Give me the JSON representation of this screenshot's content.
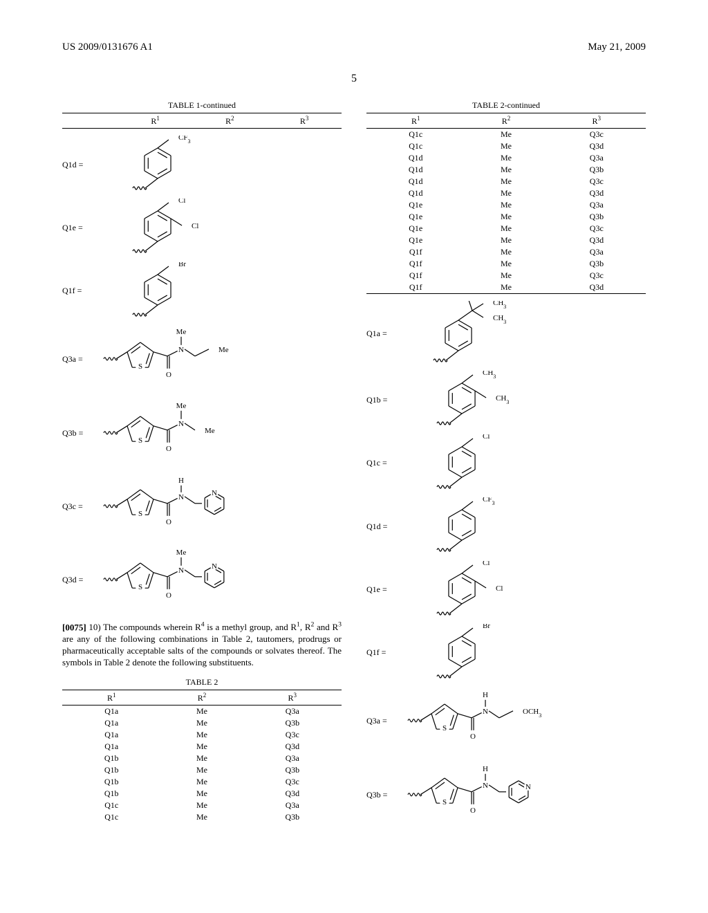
{
  "header": {
    "left": "US 2009/0131676 A1",
    "right": "May 21, 2009"
  },
  "page_number": "5",
  "fonts": {
    "body_family": "Times New Roman",
    "body_size_pt": 10,
    "caption_size_pt": 9
  },
  "colors": {
    "text": "#000000",
    "background": "#ffffff",
    "rule": "#000000",
    "bond": "#000000"
  },
  "left_column": {
    "table1": {
      "caption": "TABLE 1-continued",
      "columns": [
        "R¹",
        "R²",
        "R³"
      ]
    },
    "structures_t1": [
      {
        "label": "Q1d =",
        "kind": "phenyl_para_cf3"
      },
      {
        "label": "Q1e =",
        "kind": "phenyl_34_dicl"
      },
      {
        "label": "Q1f =",
        "kind": "phenyl_para_br"
      },
      {
        "label": "Q3a =",
        "kind": "thiophene_amide_n_me_ethyl_me"
      },
      {
        "label": "Q3b =",
        "kind": "thiophene_amide_n_me_me"
      },
      {
        "label": "Q3c =",
        "kind": "thiophene_amide_nh_ch2_pyridyl"
      },
      {
        "label": "Q3d =",
        "kind": "thiophene_amide_n_me_ch2_pyridyl"
      }
    ],
    "paragraph": {
      "number": "[0075]",
      "text": " 10) The compounds wherein R⁴ is a methyl group, and R¹, R² and R³ are any of the following combinations in Table 2, tautomers, prodrugs or pharmaceutically acceptable salts of the compounds or solvates thereof. The symbols in Table 2 denote the following substituents."
    },
    "table2": {
      "caption": "TABLE 2",
      "columns": [
        "R¹",
        "R²",
        "R³"
      ],
      "rows": [
        [
          "Q1a",
          "Me",
          "Q3a"
        ],
        [
          "Q1a",
          "Me",
          "Q3b"
        ],
        [
          "Q1a",
          "Me",
          "Q3c"
        ],
        [
          "Q1a",
          "Me",
          "Q3d"
        ],
        [
          "Q1b",
          "Me",
          "Q3a"
        ],
        [
          "Q1b",
          "Me",
          "Q3b"
        ],
        [
          "Q1b",
          "Me",
          "Q3c"
        ],
        [
          "Q1b",
          "Me",
          "Q3d"
        ],
        [
          "Q1c",
          "Me",
          "Q3a"
        ],
        [
          "Q1c",
          "Me",
          "Q3b"
        ]
      ]
    }
  },
  "right_column": {
    "table2c": {
      "caption": "TABLE 2-continued",
      "columns": [
        "R¹",
        "R²",
        "R³"
      ],
      "rows": [
        [
          "Q1c",
          "Me",
          "Q3c"
        ],
        [
          "Q1c",
          "Me",
          "Q3d"
        ],
        [
          "Q1d",
          "Me",
          "Q3a"
        ],
        [
          "Q1d",
          "Me",
          "Q3b"
        ],
        [
          "Q1d",
          "Me",
          "Q3c"
        ],
        [
          "Q1d",
          "Me",
          "Q3d"
        ],
        [
          "Q1e",
          "Me",
          "Q3a"
        ],
        [
          "Q1e",
          "Me",
          "Q3b"
        ],
        [
          "Q1e",
          "Me",
          "Q3c"
        ],
        [
          "Q1e",
          "Me",
          "Q3d"
        ],
        [
          "Q1f",
          "Me",
          "Q3a"
        ],
        [
          "Q1f",
          "Me",
          "Q3b"
        ],
        [
          "Q1f",
          "Me",
          "Q3c"
        ],
        [
          "Q1f",
          "Me",
          "Q3d"
        ]
      ]
    },
    "structures_t2": [
      {
        "label": "Q1a =",
        "kind": "phenyl_tbu"
      },
      {
        "label": "Q1b =",
        "kind": "phenyl_34_dime"
      },
      {
        "label": "Q1c =",
        "kind": "phenyl_para_cl"
      },
      {
        "label": "Q1d =",
        "kind": "phenyl_para_cf3"
      },
      {
        "label": "Q1e =",
        "kind": "phenyl_34_dicl"
      },
      {
        "label": "Q1f =",
        "kind": "phenyl_para_br"
      },
      {
        "label": "Q3a =",
        "kind": "thiophene_amide_nh_ch2ch2_och3"
      },
      {
        "label": "Q3b =",
        "kind": "thiophene_amide_nh_ch2_pyridyl_3"
      }
    ]
  },
  "chem": {
    "line_width": 1.2,
    "atom_font_size": 11,
    "wavy_segments": 6
  }
}
